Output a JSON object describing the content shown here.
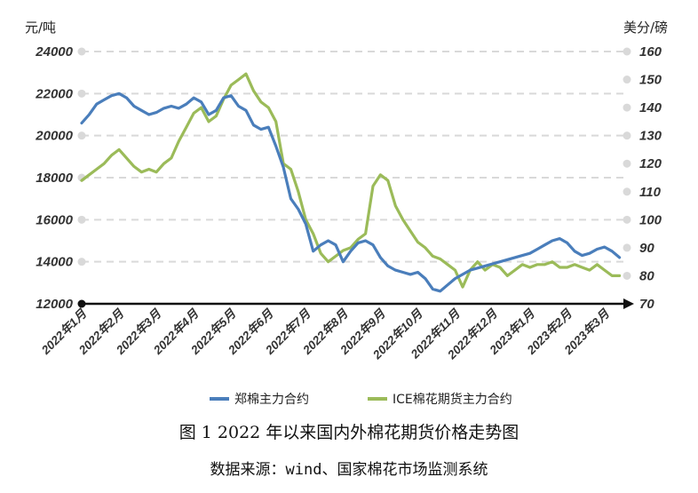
{
  "chart_data": {
    "type": "line",
    "left_axis": {
      "unit": "元/吨",
      "ylim": [
        12000,
        24000
      ],
      "ticks": [
        "24000",
        "22000",
        "20000",
        "18000",
        "16000",
        "14000",
        "12000"
      ]
    },
    "right_axis": {
      "unit": "美分/磅",
      "ylim": [
        70,
        160
      ],
      "ticks": [
        "160",
        "150",
        "140",
        "130",
        "120",
        "110",
        "100",
        "90",
        "80",
        "70"
      ]
    },
    "x_ticks": [
      "2022年1月",
      "2022年2月",
      "2022年3月",
      "2022年4月",
      "2022年5月",
      "2022年6月",
      "2022年7月",
      "2022年8月",
      "2022年9月",
      "2022年10月",
      "2022年11月",
      "2022年12月",
      "2023年1月",
      "2023年2月",
      "2023年3月"
    ],
    "x_range": [
      0,
      14.6
    ],
    "grid": true,
    "legend_position": "bottom",
    "series": [
      {
        "name": "郑棉主力合约",
        "axis": "left",
        "color": "#4a7ebb",
        "x": [
          0.0,
          0.2,
          0.4,
          0.6,
          0.8,
          1.0,
          1.2,
          1.4,
          1.6,
          1.8,
          2.0,
          2.2,
          2.4,
          2.6,
          2.8,
          3.0,
          3.2,
          3.4,
          3.6,
          3.8,
          4.0,
          4.2,
          4.4,
          4.6,
          4.8,
          5.0,
          5.2,
          5.4,
          5.6,
          5.8,
          6.0,
          6.2,
          6.4,
          6.6,
          6.8,
          7.0,
          7.2,
          7.4,
          7.6,
          7.8,
          8.0,
          8.2,
          8.4,
          8.6,
          8.8,
          9.0,
          9.2,
          9.4,
          9.6,
          9.8,
          10.0,
          10.2,
          10.4,
          10.6,
          10.8,
          11.0,
          11.2,
          11.4,
          11.6,
          11.8,
          12.0,
          12.2,
          12.4,
          12.6,
          12.8,
          13.0,
          13.2,
          13.4,
          13.6,
          13.8,
          14.0,
          14.2,
          14.4
        ],
        "values": [
          20600,
          21000,
          21500,
          21700,
          21900,
          22000,
          21800,
          21400,
          21200,
          21000,
          21100,
          21300,
          21400,
          21300,
          21500,
          21800,
          21600,
          21000,
          21200,
          21800,
          21900,
          21400,
          21200,
          20500,
          20300,
          20400,
          19500,
          18500,
          17000,
          16500,
          15800,
          14500,
          14800,
          15000,
          14800,
          14000,
          14500,
          14900,
          15000,
          14800,
          14200,
          13800,
          13600,
          13500,
          13400,
          13500,
          13200,
          12700,
          12600,
          12900,
          13200,
          13400,
          13600,
          13700,
          13800,
          13900,
          14000,
          14100,
          14200,
          14300,
          14400,
          14600,
          14800,
          15000,
          15100,
          14900,
          14500,
          14300,
          14400,
          14600,
          14700,
          14500,
          14200
        ]
      },
      {
        "name": "ICE棉花期货主力合约",
        "axis": "right",
        "color": "#9bbb59",
        "x": [
          0.0,
          0.2,
          0.4,
          0.6,
          0.8,
          1.0,
          1.2,
          1.4,
          1.6,
          1.8,
          2.0,
          2.2,
          2.4,
          2.6,
          2.8,
          3.0,
          3.2,
          3.4,
          3.6,
          3.8,
          4.0,
          4.2,
          4.4,
          4.6,
          4.8,
          5.0,
          5.2,
          5.4,
          5.6,
          5.8,
          6.0,
          6.2,
          6.4,
          6.6,
          6.8,
          7.0,
          7.2,
          7.4,
          7.6,
          7.8,
          8.0,
          8.2,
          8.4,
          8.6,
          8.8,
          9.0,
          9.2,
          9.4,
          9.6,
          9.8,
          10.0,
          10.2,
          10.4,
          10.6,
          10.8,
          11.0,
          11.2,
          11.4,
          11.6,
          11.8,
          12.0,
          12.2,
          12.4,
          12.6,
          12.8,
          13.0,
          13.2,
          13.4,
          13.6,
          13.8,
          14.0,
          14.2,
          14.4
        ],
        "values": [
          114,
          116,
          118,
          120,
          123,
          125,
          122,
          119,
          117,
          118,
          117,
          120,
          122,
          128,
          133,
          138,
          140,
          135,
          137,
          143,
          148,
          150,
          152,
          146,
          142,
          140,
          135,
          120,
          118,
          110,
          100,
          95,
          88,
          85,
          87,
          89,
          90,
          93,
          95,
          112,
          116,
          114,
          105,
          100,
          96,
          92,
          90,
          87,
          86,
          84,
          82,
          76,
          82,
          85,
          82,
          84,
          83,
          80,
          82,
          84,
          83,
          84,
          84,
          85,
          83,
          83,
          84,
          83,
          82,
          84,
          82,
          80,
          80
        ]
      }
    ]
  },
  "figure": {
    "title": "图 1    2022 年以来国内外棉花期货价格走势图",
    "source": "数据来源：wind、国家棉花市场监测系统"
  }
}
